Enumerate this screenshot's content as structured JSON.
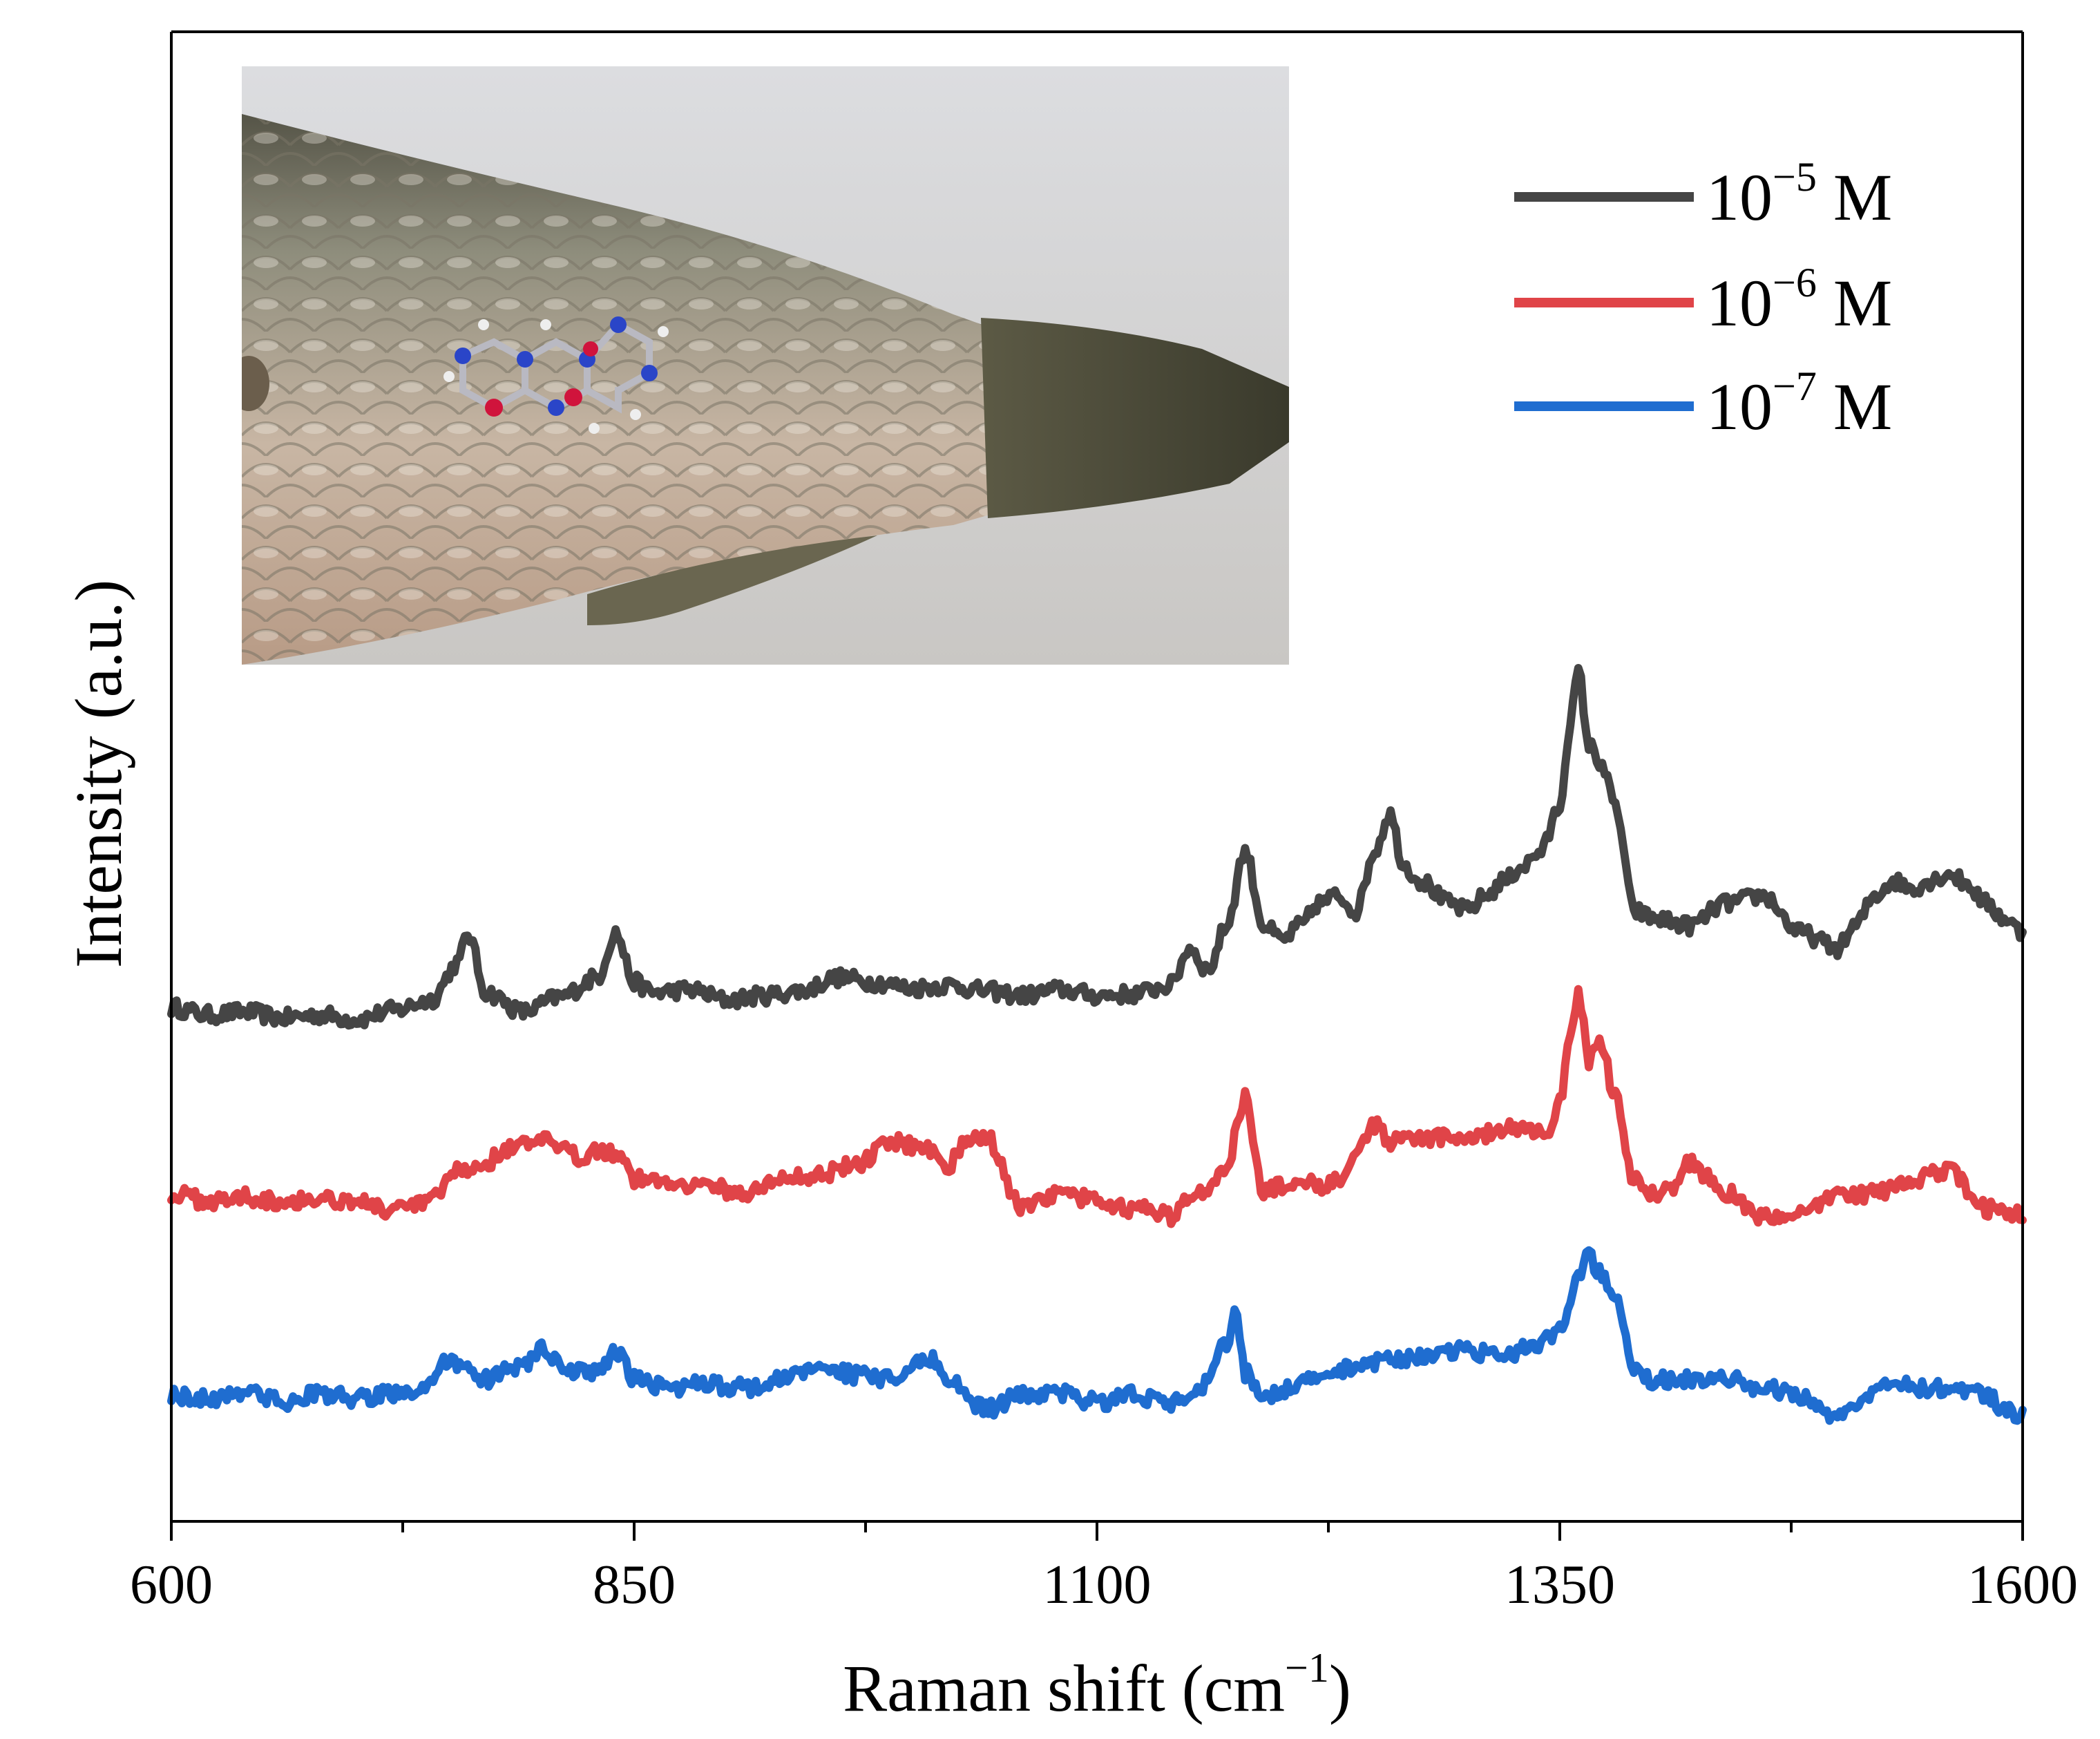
{
  "chart_data": {
    "type": "line",
    "title": "",
    "xlabel": {
      "main": "Raman shift (cm",
      "sup": "−1",
      "close": ")"
    },
    "ylabel": "Intensity (a.u.)",
    "xlim": [
      600,
      1600
    ],
    "ylim": [
      0,
      100
    ],
    "xticks": [
      600,
      850,
      1100,
      1350,
      1600
    ],
    "xtick_labels": [
      "600",
      "850",
      "1100",
      "1350",
      "1600"
    ],
    "minor_xticks": [
      725,
      975,
      1225,
      1475
    ],
    "yticks": [],
    "grid": false,
    "legend_position": "top-right",
    "series": [
      {
        "name": "10−5 M",
        "label_base": "10",
        "label_exp": "−5",
        "label_unit": " M",
        "color": "#454545",
        "x": [
          600,
          620,
          640,
          660,
          680,
          700,
          720,
          740,
          755,
          760,
          770,
          790,
          810,
          830,
          840,
          850,
          860,
          880,
          900,
          920,
          940,
          960,
          980,
          1000,
          1020,
          1040,
          1060,
          1080,
          1100,
          1120,
          1140,
          1150,
          1160,
          1170,
          1180,
          1190,
          1200,
          1210,
          1220,
          1230,
          1240,
          1250,
          1258,
          1266,
          1275,
          1290,
          1300,
          1310,
          1320,
          1330,
          1340,
          1350,
          1355,
          1360,
          1366,
          1372,
          1380,
          1390,
          1400,
          1420,
          1440,
          1460,
          1480,
          1500,
          1510,
          1520,
          1530,
          1540,
          1550,
          1560,
          1570,
          1580,
          1590,
          1600
        ],
        "y": [
          34.5,
          34.0,
          34.2,
          33.8,
          34.0,
          33.7,
          34.3,
          35.0,
          37.5,
          39.5,
          35.5,
          34.2,
          35.2,
          36.5,
          39.5,
          36.2,
          35.5,
          35.7,
          35.0,
          35.3,
          35.6,
          36.5,
          36.2,
          35.8,
          36.0,
          35.6,
          35.3,
          35.7,
          35.3,
          35.4,
          36.0,
          38.5,
          37.0,
          40.0,
          45.0,
          40.0,
          39.0,
          40.0,
          41.5,
          42.0,
          41.0,
          45.0,
          47.5,
          44.0,
          43.0,
          41.5,
          41.0,
          42.0,
          43.0,
          44.0,
          45.0,
          48.0,
          53.0,
          57.0,
          52.0,
          51.0,
          48.0,
          41.0,
          40.5,
          40.0,
          41.5,
          42.0,
          39.5,
          38.5,
          40.0,
          42.0,
          43.0,
          42.5,
          43.0,
          43.5,
          42.8,
          41.5,
          40.5,
          39.5
        ]
      },
      {
        "name": "10−6 M",
        "label_base": "10",
        "label_exp": "−6",
        "label_unit": " M",
        "color": "#e04448",
        "x": [
          600,
          620,
          640,
          660,
          680,
          700,
          720,
          740,
          755,
          770,
          780,
          800,
          820,
          830,
          840,
          850,
          870,
          890,
          910,
          930,
          950,
          970,
          990,
          1010,
          1020,
          1030,
          1040,
          1060,
          1080,
          1100,
          1120,
          1140,
          1150,
          1160,
          1170,
          1180,
          1190,
          1200,
          1210,
          1220,
          1230,
          1240,
          1250,
          1260,
          1270,
          1290,
          1310,
          1330,
          1345,
          1350,
          1355,
          1360,
          1366,
          1372,
          1380,
          1390,
          1400,
          1410,
          1420,
          1440,
          1460,
          1480,
          1500,
          1520,
          1540,
          1560,
          1580,
          1600
        ],
        "y": [
          22.0,
          21.5,
          21.8,
          21.5,
          21.7,
          21.5,
          20.8,
          21.5,
          23.5,
          24.0,
          25.0,
          25.5,
          24.5,
          25.0,
          24.8,
          23.0,
          22.8,
          22.5,
          22.0,
          23.0,
          23.3,
          24.0,
          25.5,
          25.0,
          24.0,
          25.5,
          25.8,
          21.0,
          22.0,
          21.5,
          21.0,
          20.5,
          21.5,
          22.5,
          24.0,
          28.5,
          22.0,
          22.5,
          23.0,
          22.5,
          23.0,
          25.0,
          26.5,
          25.5,
          25.5,
          25.8,
          26.0,
          26.5,
          26.0,
          28.0,
          32.0,
          35.5,
          31.0,
          32.0,
          28.5,
          23.0,
          22.0,
          22.5,
          24.0,
          22.0,
          20.5,
          20.5,
          22.0,
          22.0,
          23.0,
          23.5,
          21.0,
          20.5
        ]
      },
      {
        "name": "10−7 M",
        "label_base": "10",
        "label_exp": "−7",
        "label_unit": " M",
        "color": "#1f6dd0",
        "x": [
          600,
          620,
          640,
          660,
          680,
          700,
          720,
          740,
          750,
          760,
          770,
          790,
          800,
          810,
          820,
          830,
          840,
          850,
          870,
          890,
          910,
          930,
          950,
          970,
          990,
          1010,
          1020,
          1040,
          1060,
          1080,
          1100,
          1120,
          1140,
          1150,
          1160,
          1170,
          1175,
          1180,
          1190,
          1200,
          1220,
          1240,
          1260,
          1280,
          1300,
          1320,
          1340,
          1350,
          1360,
          1365,
          1370,
          1380,
          1390,
          1400,
          1420,
          1440,
          1460,
          1480,
          1500,
          1510,
          1520,
          1530,
          1540,
          1560,
          1580,
          1590,
          1600
        ],
        "y": [
          8.5,
          8.2,
          8.8,
          8.0,
          8.6,
          8.2,
          8.6,
          9.0,
          11.0,
          10.0,
          9.5,
          10.5,
          11.5,
          10.5,
          10.0,
          10.0,
          11.5,
          9.5,
          9.0,
          9.2,
          9.0,
          9.5,
          10.5,
          9.8,
          9.5,
          11.0,
          9.5,
          7.5,
          8.5,
          8.6,
          8.0,
          8.5,
          8.0,
          8.0,
          9.5,
          12.0,
          14.0,
          10.0,
          8.5,
          8.8,
          9.5,
          10.5,
          11.0,
          11.0,
          11.5,
          11.0,
          12.0,
          13.0,
          16.5,
          18.0,
          17.0,
          15.5,
          10.5,
          9.5,
          9.5,
          9.5,
          9.0,
          8.5,
          7.0,
          7.5,
          9.0,
          9.5,
          9.0,
          9.0,
          8.5,
          7.5,
          7.0
        ]
      }
    ],
    "inset": {
      "content": "photograph of fish tail scales with adsorbed molecule (ball-and-stick model)"
    }
  }
}
